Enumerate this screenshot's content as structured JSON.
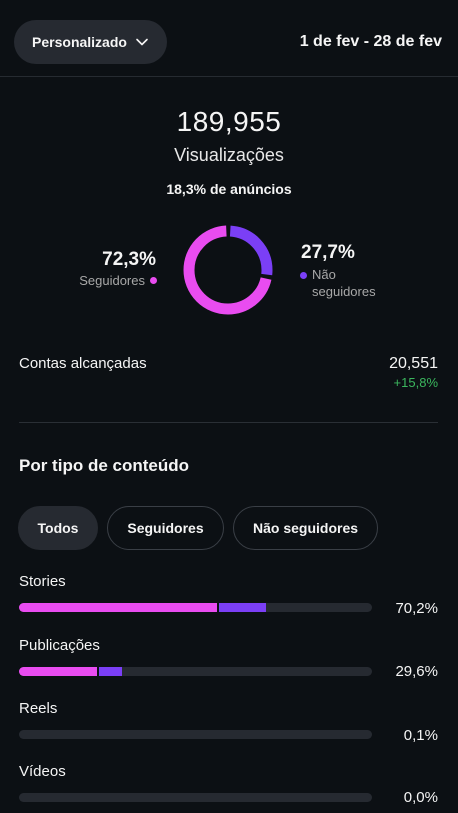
{
  "header": {
    "period_label": "Personalizado",
    "date_range": "1 de fev - 28 de fev"
  },
  "summary": {
    "views_value": "189,955",
    "views_label": "Visualizações",
    "ads_line": "18,3% de anúncios",
    "followers_pct": "72,3%",
    "followers_label": "Seguidores",
    "non_followers_pct": "27,7%",
    "non_followers_label_1": "Não",
    "non_followers_label_2": "seguidores",
    "followers_share": 0.723,
    "non_followers_share": 0.277
  },
  "reach": {
    "label": "Contas alcançadas",
    "value": "20,551",
    "change": "+15,8%"
  },
  "content_type": {
    "title": "Por tipo de conteúdo",
    "filters": [
      "Todos",
      "Seguidores",
      "Não seguidores"
    ],
    "active_filter": "Todos",
    "rows": [
      {
        "label": "Stories",
        "pct": "70,2%",
        "followers_fraction": 0.56,
        "non_followers_fraction": 0.14
      },
      {
        "label": "Publicações",
        "pct": "29,6%",
        "followers_fraction": 0.22,
        "non_followers_fraction": 0.07
      },
      {
        "label": "Reels",
        "pct": "0,1%",
        "followers_fraction": 0,
        "non_followers_fraction": 0
      },
      {
        "label": "Vídeos",
        "pct": "0,0%",
        "followers_fraction": 0,
        "non_followers_fraction": 0
      }
    ]
  },
  "colors": {
    "background": "#0c1014",
    "followers": "#e94cf0",
    "non_followers": "#7b3ff6",
    "positive": "#3bb75e",
    "track": "#262a31"
  }
}
